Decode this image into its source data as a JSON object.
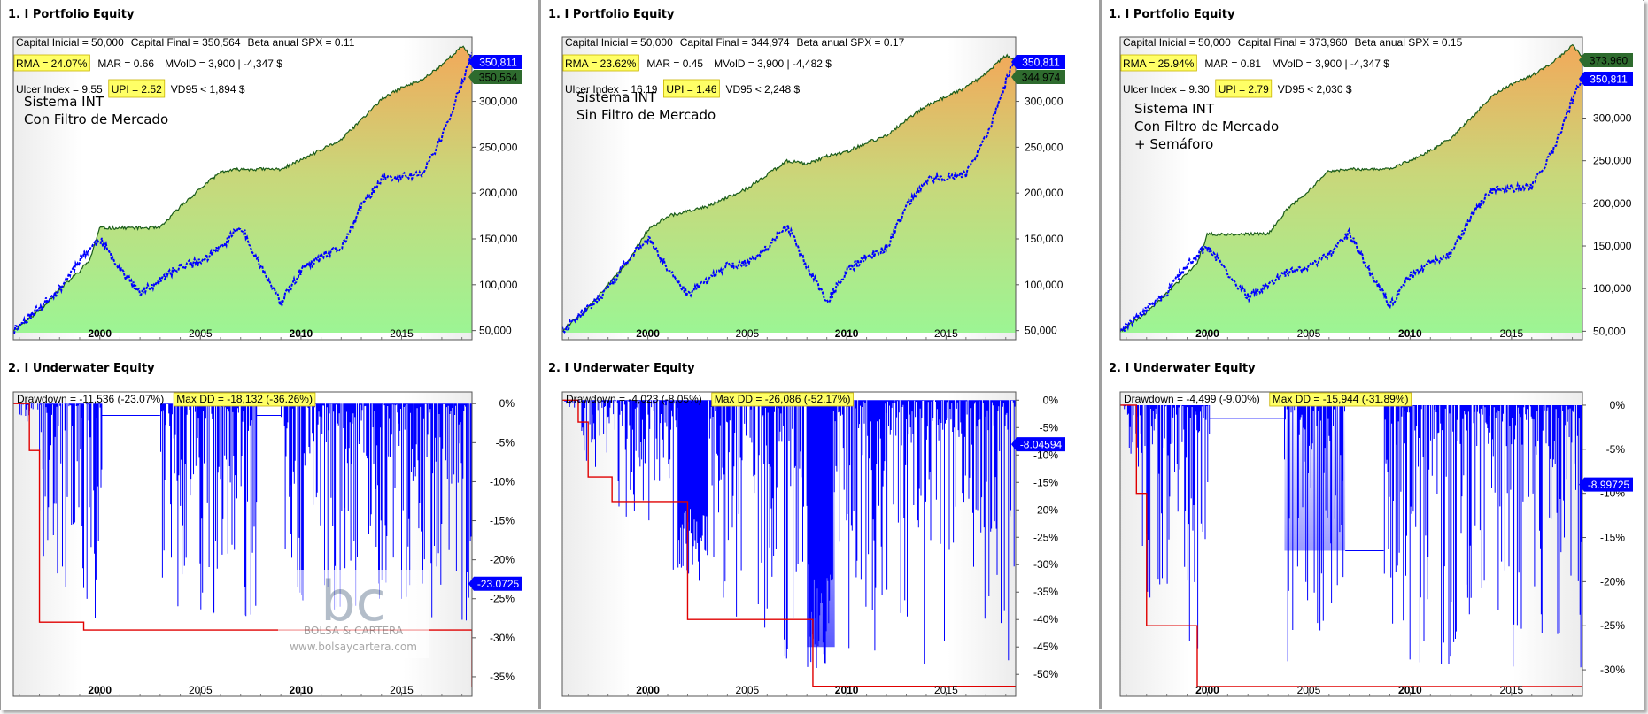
{
  "colors": {
    "equity_line": "#1a5c1a",
    "strategy_line": "#0000ff",
    "max_dd_line": "#e00000",
    "highlight": "#ffff66",
    "badge_blue": "#0000ff",
    "badge_green": "#2e6b2e",
    "fill_top": "#f2a95a",
    "fill_bottom": "#9cf594",
    "underwater_top": "#f7f7ff",
    "underwater_bottom": "#5a5aff"
  },
  "watermark": {
    "logo_text": "bc",
    "brand": "BOLSA & CARTERA",
    "url": "www.bolsaycartera.com"
  },
  "panels": [
    {
      "equity_title": "1. I Portfolio Equity",
      "stats": {
        "capital_inicial": "Capital Inicial = 50,000",
        "capital_final": "Capital Final = 350,564",
        "beta": "Beta anual SPX = 0.11",
        "rma": "RMA = 24.07%",
        "mar": "MAR = 0.66",
        "mvold": "MVolD = 3,900 | -4,347 $",
        "ulcer": "Ulcer Index = 9.55",
        "upi": "UPI = 2.52",
        "vd95": "VD95 < 1,894 $"
      },
      "system_label": [
        "Sistema INT",
        "Con Filtro de Mercado"
      ],
      "badges": [
        {
          "text": "350,811",
          "color": "blue",
          "value": 350811
        },
        {
          "text": "350,564",
          "color": "green",
          "value": 350564
        }
      ],
      "underwater_title": "2. I Underwater Equity",
      "drawdown_label": "Drawdown = -11,536 (-23.07%)",
      "max_dd_label": "Max DD = -18,132 (-36.26%)",
      "underwater_badge": {
        "text": "-23.0725",
        "value": -23.0725
      },
      "show_watermark": true
    },
    {
      "equity_title": "1. I Portfolio Equity",
      "stats": {
        "capital_inicial": "Capital Inicial = 50,000",
        "capital_final": "Capital Final = 344,974",
        "beta": "Beta anual SPX = 0.17",
        "rma": "RMA = 23.62%",
        "mar": "MAR = 0.45",
        "mvold": "MVolD = 3,900 | -4,482 $",
        "ulcer": "Ulcer Index = 16.19",
        "upi": "UPI = 1.46",
        "vd95": "VD95 < 2,248 $"
      },
      "system_label": [
        "Sistema INT",
        "Sin Filtro de Mercado"
      ],
      "badges": [
        {
          "text": "350,811",
          "color": "blue",
          "value": 350811
        },
        {
          "text": "344,974",
          "color": "green",
          "value": 344974
        }
      ],
      "underwater_title": "2. I Underwater Equity",
      "drawdown_label": "Drawdown = -4,023 (-8.05%)",
      "max_dd_label": "Max DD = -26,086 (-52.17%)",
      "underwater_badge": {
        "text": "-8.04594",
        "value": -8.04594
      },
      "show_watermark": false
    },
    {
      "equity_title": "1. I Portfolio Equity",
      "stats": {
        "capital_inicial": "Capital Inicial = 50,000",
        "capital_final": "Capital Final = 373,960",
        "beta": "Beta anual SPX = 0.15",
        "rma": "RMA = 25.94%",
        "mar": "MAR = 0.81",
        "mvold": "MVolD = 3,900 | -4,347 $",
        "ulcer": "Ulcer Index = 9.30",
        "upi": "UPI = 2.79",
        "vd95": "VD95 < 2,030 $"
      },
      "system_label": [
        "Sistema INT",
        "Con Filtro de Mercado",
        "+ Semáforo"
      ],
      "badges": [
        {
          "text": "373,960",
          "color": "green",
          "value": 373960
        },
        {
          "text": "350,811",
          "color": "blue",
          "value": 350811
        }
      ],
      "underwater_title": "2. I Underwater Equity",
      "drawdown_label": "Drawdown = -4,499 (-9.00%)",
      "max_dd_label": "Max DD = -15,944 (-31.89%)",
      "underwater_badge": {
        "text": "-8.99725",
        "value": -8.99725
      },
      "show_watermark": false
    }
  ],
  "chart_data": [
    {
      "type": "area",
      "panel": 1,
      "y_ticks": [
        "300,000",
        "250,000",
        "200,000",
        "150,000",
        "100,000",
        "50,000"
      ],
      "x_ticks": [
        "2000",
        "2005",
        "2010",
        "2015"
      ],
      "ylim": [
        40000,
        370000
      ],
      "x_range": [
        1995.7,
        2018.5
      ],
      "series": [
        {
          "name": "Sistema INT",
          "x": [
            1995.7,
            1997,
            1998,
            1999,
            1999.5,
            2000,
            2001,
            2002,
            2003,
            2004,
            2005,
            2006,
            2007,
            2008,
            2009,
            2010,
            2011,
            2012,
            2013,
            2014,
            2015,
            2016,
            2017,
            2018,
            2018.5
          ],
          "values": [
            50000,
            72000,
            95000,
            115000,
            127000,
            162000,
            162000,
            162000,
            162000,
            185000,
            205000,
            223000,
            226000,
            226000,
            226000,
            236000,
            247000,
            258000,
            280000,
            302000,
            315000,
            323000,
            340000,
            360000,
            348000
          ]
        },
        {
          "name": "SPX",
          "x": [
            1995.7,
            1997,
            1998,
            1999,
            2000,
            2001,
            2002,
            2003,
            2004,
            2005,
            2006,
            2007,
            2008,
            2009,
            2010,
            2011,
            2012,
            2013,
            2014,
            2015,
            2016,
            2017,
            2018,
            2018.5
          ],
          "values": [
            50000,
            75000,
            95000,
            128000,
            150000,
            118000,
            90000,
            105000,
            120000,
            125000,
            140000,
            165000,
            120000,
            80000,
            115000,
            130000,
            140000,
            185000,
            215000,
            218000,
            220000,
            260000,
            320000,
            350000
          ]
        }
      ]
    },
    {
      "type": "area",
      "panel": 1,
      "y_ticks": [
        "0%",
        "-5%",
        "-10%",
        "-15%",
        "-20%",
        "-25%",
        "-30%",
        "-35%"
      ],
      "x_ticks": [
        "2000",
        "2005",
        "2010",
        "2015"
      ],
      "ylim": [
        -37.5,
        1.5
      ],
      "x_range": [
        1995.7,
        2018.5
      ],
      "series": [
        {
          "name": "Max DD",
          "x": [
            1995.7,
            1996.5,
            1997,
            1999.2,
            2018.0,
            2018.5
          ],
          "values": [
            0,
            -6,
            -28,
            -29,
            -29,
            -36.26
          ]
        }
      ]
    },
    {
      "type": "area",
      "panel": 2,
      "y_ticks": [
        "300,000",
        "250,000",
        "200,000",
        "150,000",
        "100,000",
        "50,000"
      ],
      "x_ticks": [
        "2000",
        "2005",
        "2010",
        "2015"
      ],
      "ylim": [
        40000,
        370000
      ],
      "x_range": [
        1995.7,
        2018.5
      ],
      "series": [
        {
          "name": "Sistema INT",
          "x": [
            1995.7,
            1997,
            1998,
            1999,
            2000,
            2001,
            2002,
            2003,
            2004,
            2005,
            2006,
            2007,
            2008,
            2009,
            2010,
            2011,
            2012,
            2013,
            2014,
            2015,
            2016,
            2017,
            2018,
            2018.5
          ],
          "values": [
            50000,
            75000,
            100000,
            125000,
            160000,
            175000,
            180000,
            185000,
            195000,
            205000,
            220000,
            235000,
            232000,
            240000,
            245000,
            255000,
            262000,
            280000,
            295000,
            305000,
            315000,
            330000,
            350000,
            345000
          ]
        },
        {
          "name": "SPX",
          "x": [
            1995.7,
            1997,
            1998,
            1999,
            2000,
            2001,
            2002,
            2003,
            2004,
            2005,
            2006,
            2007,
            2008,
            2009,
            2010,
            2011,
            2012,
            2013,
            2014,
            2015,
            2016,
            2017,
            2018,
            2018.5
          ],
          "values": [
            50000,
            75000,
            95000,
            128000,
            150000,
            118000,
            90000,
            105000,
            120000,
            125000,
            140000,
            165000,
            120000,
            80000,
            115000,
            130000,
            140000,
            185000,
            215000,
            218000,
            220000,
            260000,
            320000,
            350000
          ]
        }
      ]
    },
    {
      "type": "area",
      "panel": 2,
      "y_ticks": [
        "0%",
        "-5%",
        "-10%",
        "-15%",
        "-20%",
        "-25%",
        "-30%",
        "-35%",
        "-40%",
        "-45%",
        "-50%"
      ],
      "x_ticks": [
        "2000",
        "2005",
        "2010",
        "2015"
      ],
      "ylim": [
        -54,
        1.5
      ],
      "x_range": [
        1995.7,
        2018.5
      ],
      "series": [
        {
          "name": "Max DD",
          "x": [
            1995.7,
            1996.5,
            1997.0,
            1998.2,
            2002.0,
            2008.3,
            2018.5
          ],
          "values": [
            0,
            -4,
            -14,
            -18.5,
            -40,
            -52.17,
            -52.17
          ]
        }
      ]
    },
    {
      "type": "area",
      "panel": 3,
      "y_ticks": [
        "300,000",
        "250,000",
        "200,000",
        "150,000",
        "100,000",
        "50,000"
      ],
      "x_ticks": [
        "2000",
        "2005",
        "2010",
        "2015"
      ],
      "ylim": [
        40000,
        395000
      ],
      "x_range": [
        1995.7,
        2018.5
      ],
      "series": [
        {
          "name": "Sistema INT",
          "x": [
            1995.7,
            1997,
            1998,
            1999,
            1999.5,
            2000,
            2001,
            2002,
            2003,
            2004,
            2005,
            2006,
            2007,
            2008,
            2009,
            2010,
            2011,
            2012,
            2013,
            2014,
            2015,
            2016,
            2017,
            2018,
            2018.5
          ],
          "values": [
            50000,
            72000,
            95000,
            118000,
            130000,
            164000,
            164000,
            164000,
            164000,
            195000,
            215000,
            238000,
            240000,
            240000,
            240000,
            250000,
            262000,
            276000,
            300000,
            325000,
            340000,
            350000,
            365000,
            385000,
            373000
          ]
        },
        {
          "name": "SPX",
          "x": [
            1995.7,
            1997,
            1998,
            1999,
            2000,
            2001,
            2002,
            2003,
            2004,
            2005,
            2006,
            2007,
            2008,
            2009,
            2010,
            2011,
            2012,
            2013,
            2014,
            2015,
            2016,
            2017,
            2018,
            2018.5
          ],
          "values": [
            50000,
            75000,
            95000,
            128000,
            150000,
            118000,
            90000,
            105000,
            120000,
            125000,
            140000,
            165000,
            120000,
            80000,
            115000,
            130000,
            140000,
            185000,
            215000,
            218000,
            220000,
            260000,
            320000,
            350000
          ]
        }
      ]
    },
    {
      "type": "area",
      "panel": 3,
      "y_ticks": [
        "0%",
        "-5%",
        "-10%",
        "-15%",
        "-20%",
        "-25%",
        "-30%"
      ],
      "x_ticks": [
        "2000",
        "2005",
        "2010",
        "2015"
      ],
      "ylim": [
        -33,
        1.5
      ],
      "x_range": [
        1995.7,
        2018.5
      ],
      "series": [
        {
          "name": "Max DD",
          "x": [
            1995.7,
            1996.5,
            1997.0,
            1999.5,
            2018.5
          ],
          "values": [
            0,
            -10,
            -25,
            -31.89,
            -31.89
          ]
        }
      ]
    }
  ]
}
